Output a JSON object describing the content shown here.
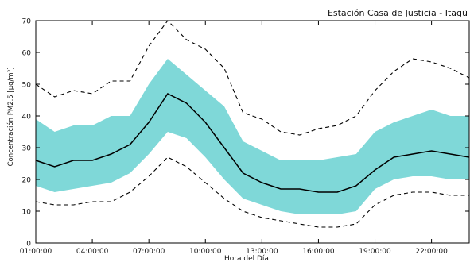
{
  "colors": {
    "band": "#7fd8d8",
    "mean_line": "#000000",
    "extreme_lines": "#000000",
    "axes": "#000000",
    "background": "#ffffff"
  },
  "chart_data": {
    "type": "line",
    "title": "Estación Casa de Justicia - Itagü",
    "xlabel": "Hora del Día",
    "ylabel": "Concentración PM2.5 [µg/m³]",
    "x": [
      "01:00:00",
      "02:00:00",
      "03:00:00",
      "04:00:00",
      "05:00:00",
      "06:00:00",
      "07:00:00",
      "08:00:00",
      "09:00:00",
      "10:00:00",
      "11:00:00",
      "12:00:00",
      "13:00:00",
      "14:00:00",
      "15:00:00",
      "16:00:00",
      "17:00:00",
      "18:00:00",
      "19:00:00",
      "20:00:00",
      "21:00:00",
      "22:00:00",
      "23:00:00",
      "24:00:00"
    ],
    "xticks": [
      "01:00:00",
      "04:00:00",
      "07:00:00",
      "10:00:00",
      "13:00:00",
      "16:00:00",
      "19:00:00",
      "22:00:00"
    ],
    "ylim": [
      0,
      70
    ],
    "yticks": [
      0,
      10,
      20,
      30,
      40,
      50,
      60,
      70
    ],
    "series": [
      {
        "role": "mean",
        "style": "solid",
        "values": [
          26,
          24,
          26,
          26,
          28,
          31,
          38,
          47,
          44,
          38,
          30,
          22,
          19,
          17,
          17,
          16,
          16,
          18,
          23,
          27,
          28,
          29,
          28,
          27
        ]
      },
      {
        "role": "band_upper",
        "style": "filled",
        "values": [
          39,
          35,
          37,
          37,
          40,
          40,
          50,
          58,
          53,
          48,
          43,
          32,
          29,
          26,
          26,
          26,
          27,
          28,
          35,
          38,
          40,
          42,
          40,
          40
        ]
      },
      {
        "role": "band_lower",
        "style": "filled",
        "values": [
          18,
          16,
          17,
          18,
          19,
          22,
          28,
          35,
          33,
          27,
          20,
          14,
          12,
          10,
          9,
          9,
          9,
          10,
          17,
          20,
          21,
          21,
          20,
          20
        ]
      },
      {
        "role": "upper_extreme",
        "style": "dashed",
        "values": [
          50,
          46,
          48,
          47,
          51,
          51,
          62,
          70,
          64,
          61,
          55,
          41,
          39,
          35,
          34,
          36,
          37,
          40,
          48,
          54,
          58,
          57,
          55,
          52
        ]
      },
      {
        "role": "lower_extreme",
        "style": "dashed",
        "values": [
          13,
          12,
          12,
          13,
          13,
          16,
          21,
          27,
          24,
          19,
          14,
          10,
          8,
          7,
          6,
          5,
          5,
          6,
          12,
          15,
          16,
          16,
          15,
          15
        ]
      }
    ],
    "grid": false,
    "legend": "none"
  }
}
